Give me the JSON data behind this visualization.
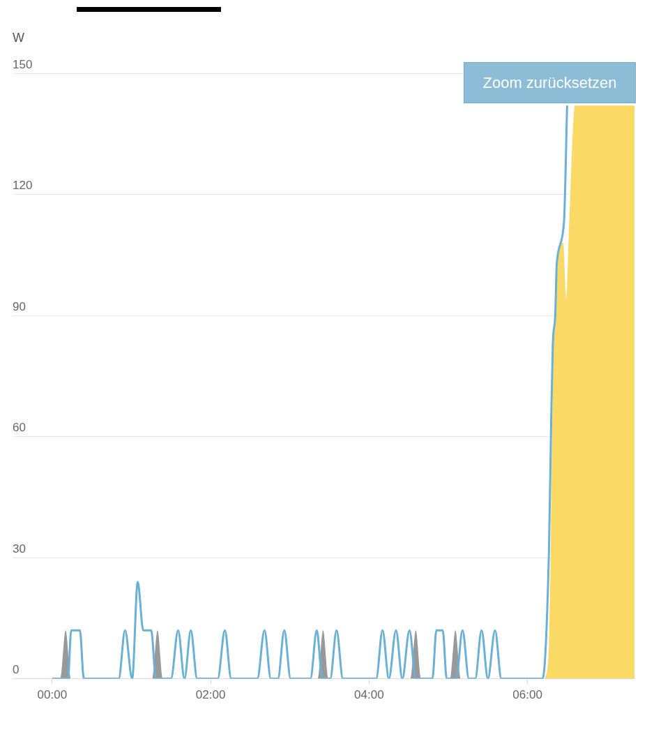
{
  "chart_data": {
    "type": "line",
    "ylabel": "W",
    "annotations": [
      "Zoom zurücksetzen"
    ],
    "xlim": [
      -0.5,
      7.35
    ],
    "xticks": [
      {
        "value": 0,
        "label": "00:00"
      },
      {
        "value": 2,
        "label": "02:00"
      },
      {
        "value": 4,
        "label": "04:00"
      },
      {
        "value": 6,
        "label": "06:00"
      }
    ],
    "ylim": [
      0,
      150
    ],
    "yticks": [
      0,
      30,
      60,
      90,
      120,
      150
    ],
    "grid": "y",
    "legend": false,
    "marker": "none",
    "line_style": "solid",
    "series": [
      {
        "type": "area",
        "color": "#999999",
        "x": [
          0,
          0.1,
          0.17,
          0.24,
          1.26,
          1.33,
          1.4,
          3.35,
          3.42,
          3.49,
          4.52,
          4.59,
          4.66,
          5.02,
          5.09,
          5.16,
          6.1
        ],
        "values": [
          0,
          0,
          12,
          0,
          0,
          12,
          0,
          0,
          12,
          0,
          0,
          12,
          0,
          0,
          12,
          0,
          0
        ]
      },
      {
        "type": "area",
        "color": "#fad965",
        "x": [
          6.22,
          6.27,
          6.33,
          6.35,
          6.4,
          6.45,
          6.49,
          6.53,
          6.6,
          7.35
        ],
        "values": [
          0,
          8,
          83,
          90,
          107,
          108,
          94,
          115,
          142,
          142
        ]
      },
      {
        "type": "line",
        "color": "#6bb0d6",
        "x": [
          0,
          0.2,
          0.24,
          0.35,
          0.4,
          0.84,
          0.92,
          1.01,
          1.08,
          1.15,
          1.25,
          1.31,
          1.5,
          1.59,
          1.67,
          1.75,
          1.83,
          2.09,
          2.18,
          2.26,
          2.59,
          2.68,
          2.76,
          2.85,
          2.93,
          3.01,
          3.26,
          3.34,
          3.41,
          3.51,
          3.59,
          3.67,
          4.09,
          4.17,
          4.25,
          4.34,
          4.42,
          4.51,
          4.59,
          4.8,
          4.85,
          4.93,
          4.98,
          5.1,
          5.18,
          5.26,
          5.34,
          5.42,
          5.5,
          5.59,
          5.67,
          6.19,
          6.27,
          6.3,
          6.32,
          6.35,
          6.37,
          6.46,
          6.5
        ],
        "values": [
          0,
          0,
          12,
          12,
          0,
          0,
          12,
          0,
          24,
          12,
          12,
          0,
          0,
          12,
          0,
          12,
          0,
          0,
          12,
          0,
          0,
          12,
          0,
          0,
          12,
          0,
          0,
          12,
          0,
          0,
          12,
          0,
          0,
          12,
          0,
          12,
          0,
          12,
          0,
          0,
          12,
          12,
          0,
          0,
          12,
          0,
          0,
          12,
          0,
          12,
          0,
          0,
          31,
          65,
          83,
          90,
          103,
          113,
          142
        ]
      }
    ]
  }
}
